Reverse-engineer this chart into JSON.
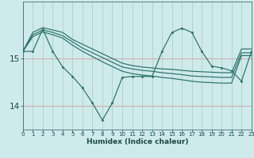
{
  "xlabel": "Humidex (Indice chaleur)",
  "bg_color": "#ceeaea",
  "vgrid_color": "#b0d0cc",
  "hgrid_color": "#d4aaaa",
  "line_color": "#2a7068",
  "xlim": [
    0,
    23
  ],
  "ylim": [
    13.5,
    16.2
  ],
  "yticks": [
    14,
    15
  ],
  "xticks": [
    0,
    1,
    2,
    3,
    4,
    5,
    6,
    7,
    8,
    9,
    10,
    11,
    12,
    13,
    14,
    15,
    16,
    17,
    18,
    19,
    20,
    21,
    22,
    23
  ],
  "line1_y": [
    15.15,
    15.55,
    15.65,
    15.6,
    15.55,
    15.4,
    15.3,
    15.2,
    15.1,
    15.0,
    14.9,
    14.85,
    14.82,
    14.8,
    14.78,
    14.77,
    14.75,
    14.73,
    14.72,
    14.71,
    14.7,
    14.7,
    15.2,
    15.2
  ],
  "line2_y": [
    15.15,
    15.5,
    15.6,
    15.55,
    15.48,
    15.35,
    15.22,
    15.12,
    15.02,
    14.92,
    14.82,
    14.78,
    14.75,
    14.73,
    14.7,
    14.68,
    14.66,
    14.63,
    14.62,
    14.61,
    14.6,
    14.6,
    15.12,
    15.12
  ],
  "line3_y": [
    15.15,
    15.46,
    15.56,
    15.5,
    15.43,
    15.28,
    15.15,
    15.04,
    14.93,
    14.83,
    14.73,
    14.68,
    14.65,
    14.63,
    14.6,
    14.58,
    14.55,
    14.52,
    14.5,
    14.49,
    14.48,
    14.48,
    15.06,
    15.06
  ],
  "curve_y": [
    15.15,
    15.15,
    15.62,
    15.15,
    14.82,
    14.62,
    14.38,
    14.06,
    13.7,
    14.06,
    14.6,
    14.62,
    14.62,
    14.62,
    15.15,
    15.55,
    15.64,
    15.55,
    15.15,
    14.84,
    14.8,
    14.74,
    14.52,
    15.15
  ]
}
